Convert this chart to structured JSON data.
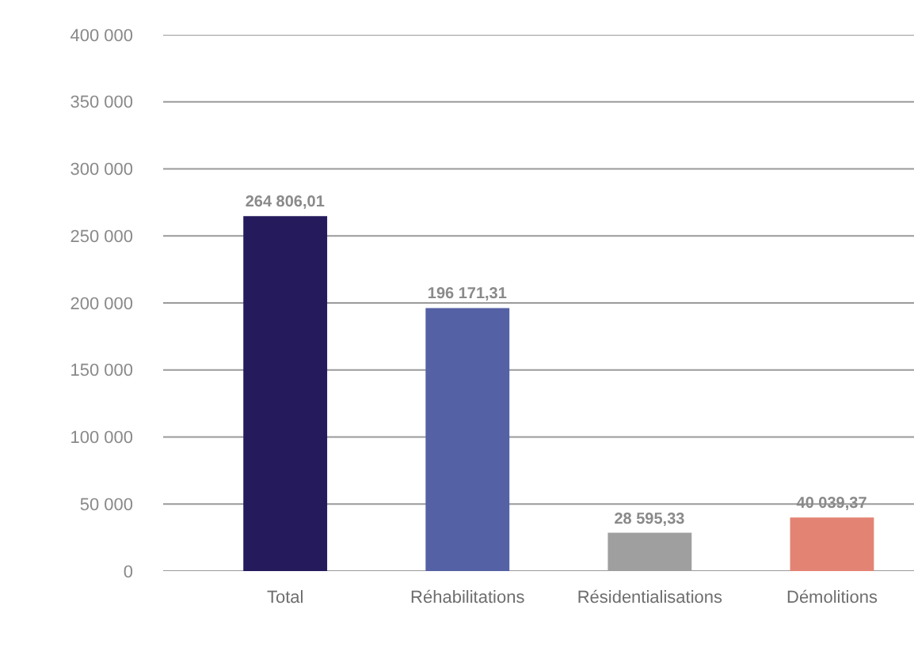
{
  "chart_data": {
    "type": "bar",
    "categories": [
      "Total",
      "Réhabilitations",
      "Résidentialisations",
      "Démolitions"
    ],
    "values": [
      264806.01,
      196171.31,
      28595.33,
      40039.37
    ],
    "value_labels": [
      "264 806,01",
      "196 171,31",
      "28 595,33",
      "40 039,37"
    ],
    "colors": [
      "#241a5c",
      "#5561a5",
      "#a09f9f",
      "#e38374"
    ],
    "ylim": [
      0,
      400000
    ],
    "yticks": [
      {
        "value": 0,
        "label": "0"
      },
      {
        "value": 50000,
        "label": "50 000"
      },
      {
        "value": 100000,
        "label": "100 000"
      },
      {
        "value": 150000,
        "label": "150 000"
      },
      {
        "value": 200000,
        "label": "200 000"
      },
      {
        "value": 250000,
        "label": "250 000"
      },
      {
        "value": 300000,
        "label": "300 000"
      },
      {
        "value": 350000,
        "label": "350 000"
      },
      {
        "value": 400000,
        "label": "400 000"
      }
    ],
    "grid": "y"
  }
}
